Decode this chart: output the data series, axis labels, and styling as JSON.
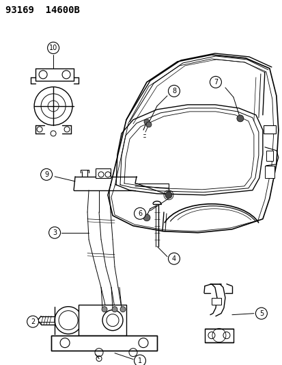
{
  "title": "93169  14600B",
  "bg": "#ffffff",
  "lc": "#000000",
  "fig_w": 4.14,
  "fig_h": 5.33,
  "dpi": 100
}
